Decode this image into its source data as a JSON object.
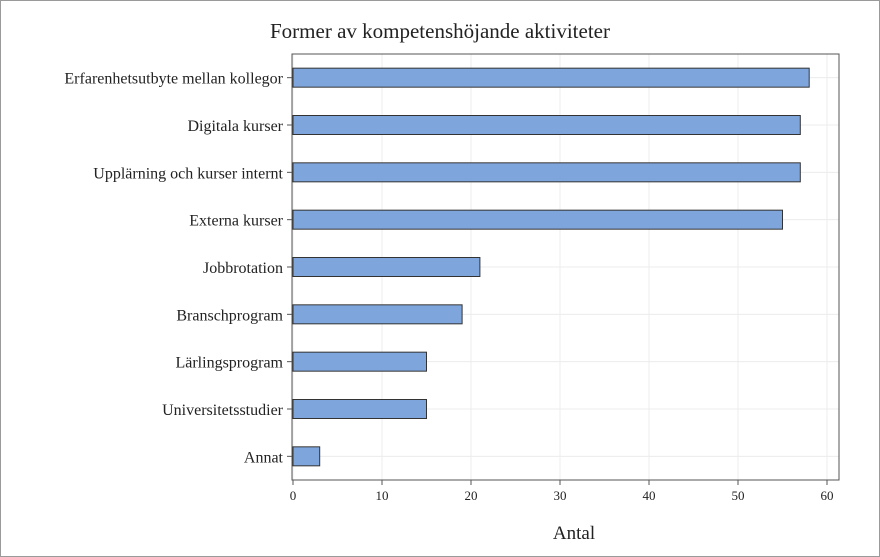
{
  "chart_data": {
    "type": "bar",
    "orientation": "horizontal",
    "title": "Former av kompetenshöjande aktiviteter",
    "xlabel": "Antal",
    "ylabel": "",
    "categories": [
      "Erfarenhetsutbyte mellan kollegor",
      "Digitala kurser",
      "Upplärning och kurser internt",
      "Externa kurser",
      "Jobbrotation",
      "Branschprogram",
      "Lärlingsprogram",
      "Universitetsstudier",
      "Annat"
    ],
    "values": [
      58,
      57,
      57,
      55,
      21,
      19,
      15,
      15,
      3
    ],
    "xlim": [
      0,
      61
    ],
    "xticks": [
      "0",
      "10",
      "20",
      "30",
      "40",
      "50",
      "60"
    ],
    "grid": true,
    "bar_color": "#7ea6dc",
    "bar_edge_color": "#333333"
  }
}
